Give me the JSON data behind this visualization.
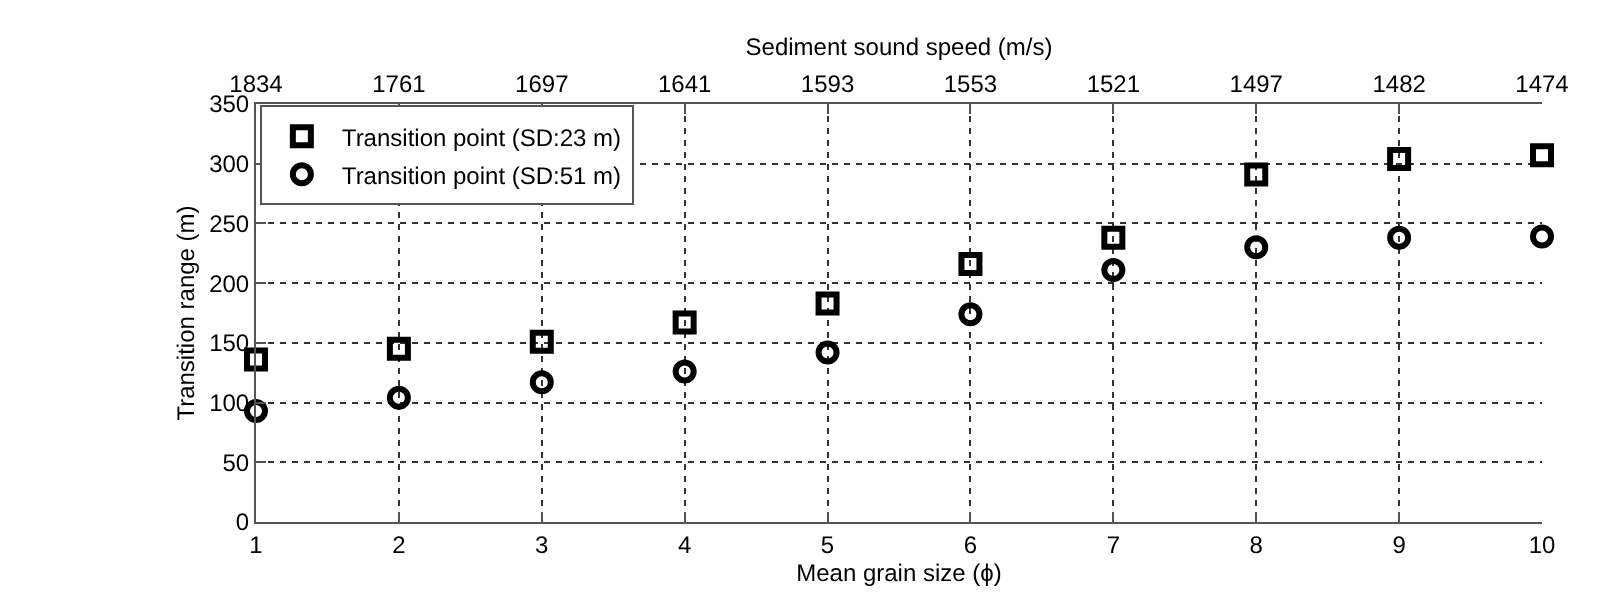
{
  "chart_data": {
    "type": "scatter",
    "xlabel": "Mean grain size (ϕ)",
    "ylabel": "Transition range (m)",
    "x2label": "Sediment sound speed (m/s)",
    "x": [
      1,
      2,
      3,
      4,
      5,
      6,
      7,
      8,
      9,
      10
    ],
    "series": [
      {
        "name": "Transition point (SD:23 m)",
        "color": "#000000",
        "marker": "square",
        "values": [
          136,
          145,
          151,
          167,
          183,
          216,
          238,
          291,
          304,
          307
        ]
      },
      {
        "name": "Transition point (SD:51 m)",
        "color": "#000000",
        "marker": "circle",
        "values": [
          93,
          104,
          117,
          126,
          142,
          174,
          211,
          230,
          238,
          239
        ]
      }
    ],
    "xlim": [
      1,
      10
    ],
    "xticks": [
      1,
      2,
      3,
      4,
      5,
      6,
      7,
      8,
      9,
      10
    ],
    "annotations": [
      "1834",
      "1761",
      "1697",
      "1641",
      "1593",
      "1553",
      "1521",
      "1497",
      "1482",
      "1474"
    ],
    "ylim": [
      0,
      350
    ],
    "yticks": [
      0,
      50,
      100,
      150,
      200,
      250,
      300,
      350
    ],
    "grid": true,
    "legend": "top left"
  }
}
